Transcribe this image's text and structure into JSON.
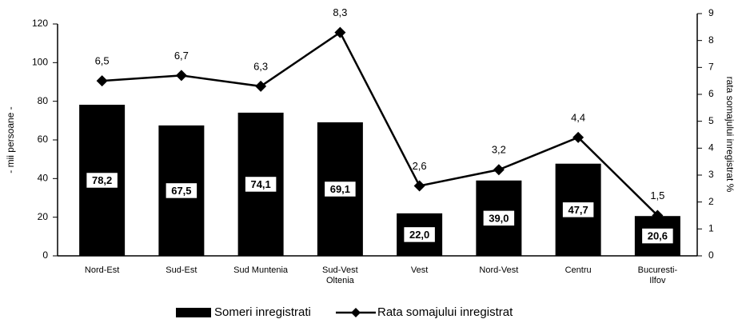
{
  "chart_data": {
    "type": "bar-line",
    "categories": [
      "Nord-Est",
      "Sud-Est",
      "Sud Muntenia",
      "Sud-Vest Oltenia",
      "Vest",
      "Nord-Vest",
      "Centru",
      "Bucuresti-Ilfov"
    ],
    "series": [
      {
        "name": "Someri inregistrati",
        "color": "#000000",
        "type": "bar",
        "values": [
          78.2,
          67.5,
          74.1,
          69.1,
          22.0,
          39.0,
          47.7,
          20.6
        ],
        "value_labels": [
          "78,2",
          "67,5",
          "74,1",
          "69,1",
          "22,0",
          "39,0",
          "47,7",
          "20,6"
        ]
      },
      {
        "name": "Rata somajului inregistrat",
        "color": "#000000",
        "type": "line",
        "axis": "y2",
        "values": [
          6.5,
          6.7,
          6.3,
          8.3,
          2.6,
          3.2,
          4.4,
          1.5
        ],
        "value_labels": [
          "6,5",
          "6,7",
          "6,3",
          "8,3",
          "2,6",
          "3,2",
          "4,4",
          "1,5"
        ]
      }
    ],
    "ylabel": "- mii persoane -",
    "y2label": "rata somajului inregistrat %",
    "ylim": [
      0,
      120
    ],
    "yticks": [
      0,
      20,
      40,
      60,
      80,
      100,
      120
    ],
    "y2lim": [
      0,
      9
    ],
    "y2ticks": [
      0,
      1,
      2,
      3,
      4,
      5,
      6,
      7,
      8,
      9
    ],
    "legend": "bottom"
  }
}
